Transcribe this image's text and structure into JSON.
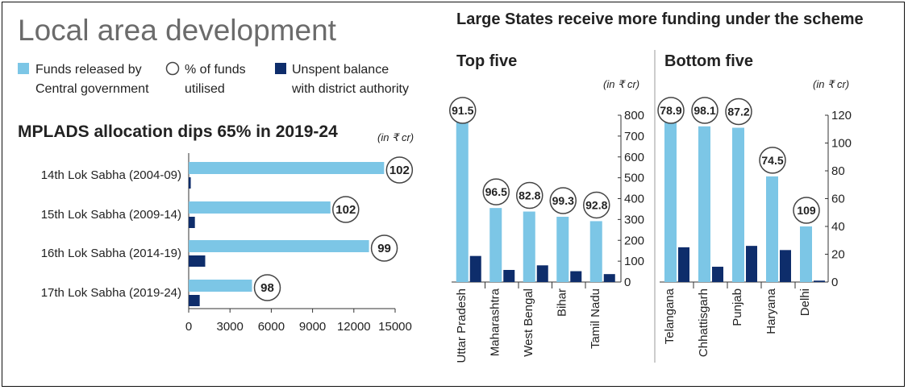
{
  "left_panel": {
    "title": "Local area development",
    "legend": {
      "funds": "Funds released by Central government",
      "funds_l1": "Funds released by",
      "funds_l2": "Central government",
      "pct": "% of funds utilised",
      "pct_l1": "% of funds",
      "pct_l2": "utilised",
      "unspent": "Unspent balance with district authority",
      "unspent_l1": "Unspent balance",
      "unspent_l2": "with district authority"
    }
  },
  "right_panel": {
    "title": "Large States receive more funding under the scheme"
  },
  "colors": {
    "funds": "#7cc6e6",
    "unspent": "#0e2d6b",
    "text": "#222222",
    "title_grey": "#6b6b6b"
  },
  "chart_data": [
    {
      "type": "bar",
      "orientation": "horizontal",
      "title": "MPLADS allocation dips 65% in 2019-24",
      "unit": "(in ₹ cr)",
      "categories": [
        "14th Lok Sabha (2004-09)",
        "15th Lok Sabha (2009-14)",
        "16th Lok Sabha (2014-19)",
        "17th Lok Sabha (2019-24)"
      ],
      "series": [
        {
          "name": "Funds released by Central government",
          "values": [
            14200,
            10300,
            13100,
            4600
          ]
        },
        {
          "name": "Unspent balance with district authority",
          "values": [
            150,
            450,
            1200,
            800
          ]
        }
      ],
      "percent_utilised": [
        "102",
        "102",
        "99",
        "98"
      ],
      "xlim": [
        0,
        15000
      ],
      "xticks": [
        "0",
        "3000",
        "6000",
        "9000",
        "12000",
        "15000"
      ]
    },
    {
      "type": "bar",
      "title": "Top five",
      "unit": "(in ₹ cr)",
      "categories": [
        "Uttar Pradesh",
        "Maharashtra",
        "West Bengal",
        "Bihar",
        "Tamil Nadu"
      ],
      "series": [
        {
          "name": "Funds released by Central government",
          "values": [
            800,
            355,
            338,
            313,
            292
          ]
        },
        {
          "name": "Unspent balance with district authority",
          "values": [
            125,
            58,
            80,
            52,
            38
          ]
        }
      ],
      "percent_utilised": [
        "91.5",
        "96.5",
        "82.8",
        "99.3",
        "92.8"
      ],
      "ylim": [
        0,
        800
      ],
      "yticks": [
        "0",
        "100",
        "200",
        "300",
        "400",
        "500",
        "600",
        "700",
        "800"
      ]
    },
    {
      "type": "bar",
      "title": "Bottom five",
      "unit": "(in ₹ cr)",
      "categories": [
        "Telangana",
        "Chhattisgarh",
        "Punjab",
        "Haryana",
        "Delhi"
      ],
      "series": [
        {
          "name": "Funds released by Central government",
          "values": [
            120,
            112,
            111,
            76,
            40
          ]
        },
        {
          "name": "Unspent balance with district authority",
          "values": [
            25,
            11,
            26,
            23,
            1
          ]
        }
      ],
      "percent_utilised": [
        "78.9",
        "98.1",
        "87.2",
        "74.5",
        "109"
      ],
      "ylim": [
        0,
        120
      ],
      "yticks": [
        "0",
        "20",
        "40",
        "60",
        "80",
        "100",
        "120"
      ]
    }
  ]
}
